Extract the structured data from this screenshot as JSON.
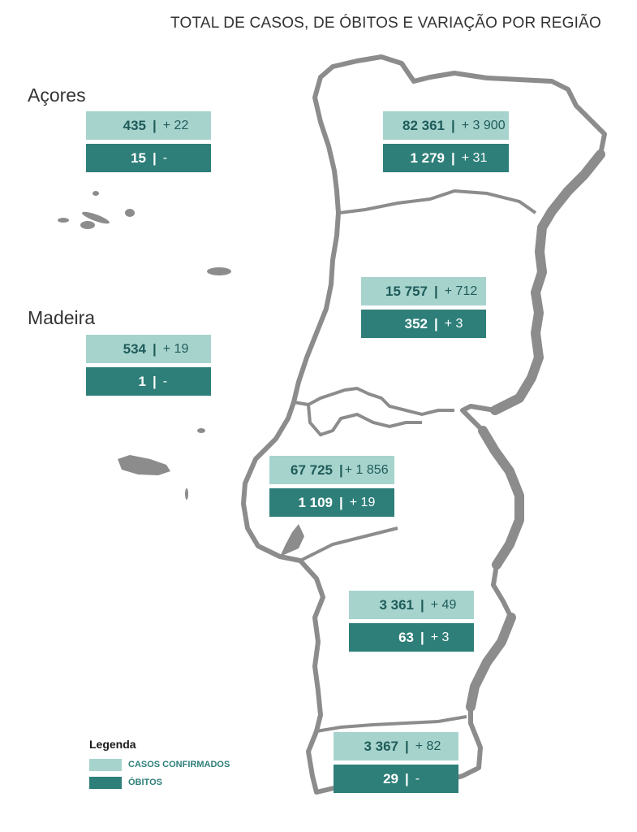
{
  "title": "TOTAL DE CASOS, DE ÓBITOS E VARIAÇÃO POR REGIÃO",
  "islands": {
    "azores": "Açores",
    "madeira": "Madeira"
  },
  "colors": {
    "cases": "#a7d3cd",
    "deaths": "#2e7f79",
    "map": "#8c8c8c"
  },
  "regions": {
    "azores": {
      "cases": "435",
      "cases_var": "+ 22",
      "deaths": "15",
      "deaths_var": "-"
    },
    "madeira": {
      "cases": "534",
      "cases_var": "+ 19",
      "deaths": "1",
      "deaths_var": "-"
    },
    "norte": {
      "cases": "82 361",
      "cases_var": "+ 3 900",
      "deaths": "1 279",
      "deaths_var": "+ 31"
    },
    "centro": {
      "cases": "15 757",
      "cases_var": "+ 712",
      "deaths": "352",
      "deaths_var": "+ 3"
    },
    "lisboa": {
      "cases": "67 725",
      "cases_var": "+ 1 856",
      "deaths": "1 109",
      "deaths_var": "+ 19"
    },
    "alentejo": {
      "cases": "3 361",
      "cases_var": "+ 49",
      "deaths": "63",
      "deaths_var": "+ 3"
    },
    "algarve": {
      "cases": "3 367",
      "cases_var": "+ 82",
      "deaths": "29",
      "deaths_var": "-"
    }
  },
  "legend": {
    "title": "Legenda",
    "cases_label": "CASOS CONFIRMADOS",
    "deaths_label": "ÓBITOS"
  }
}
